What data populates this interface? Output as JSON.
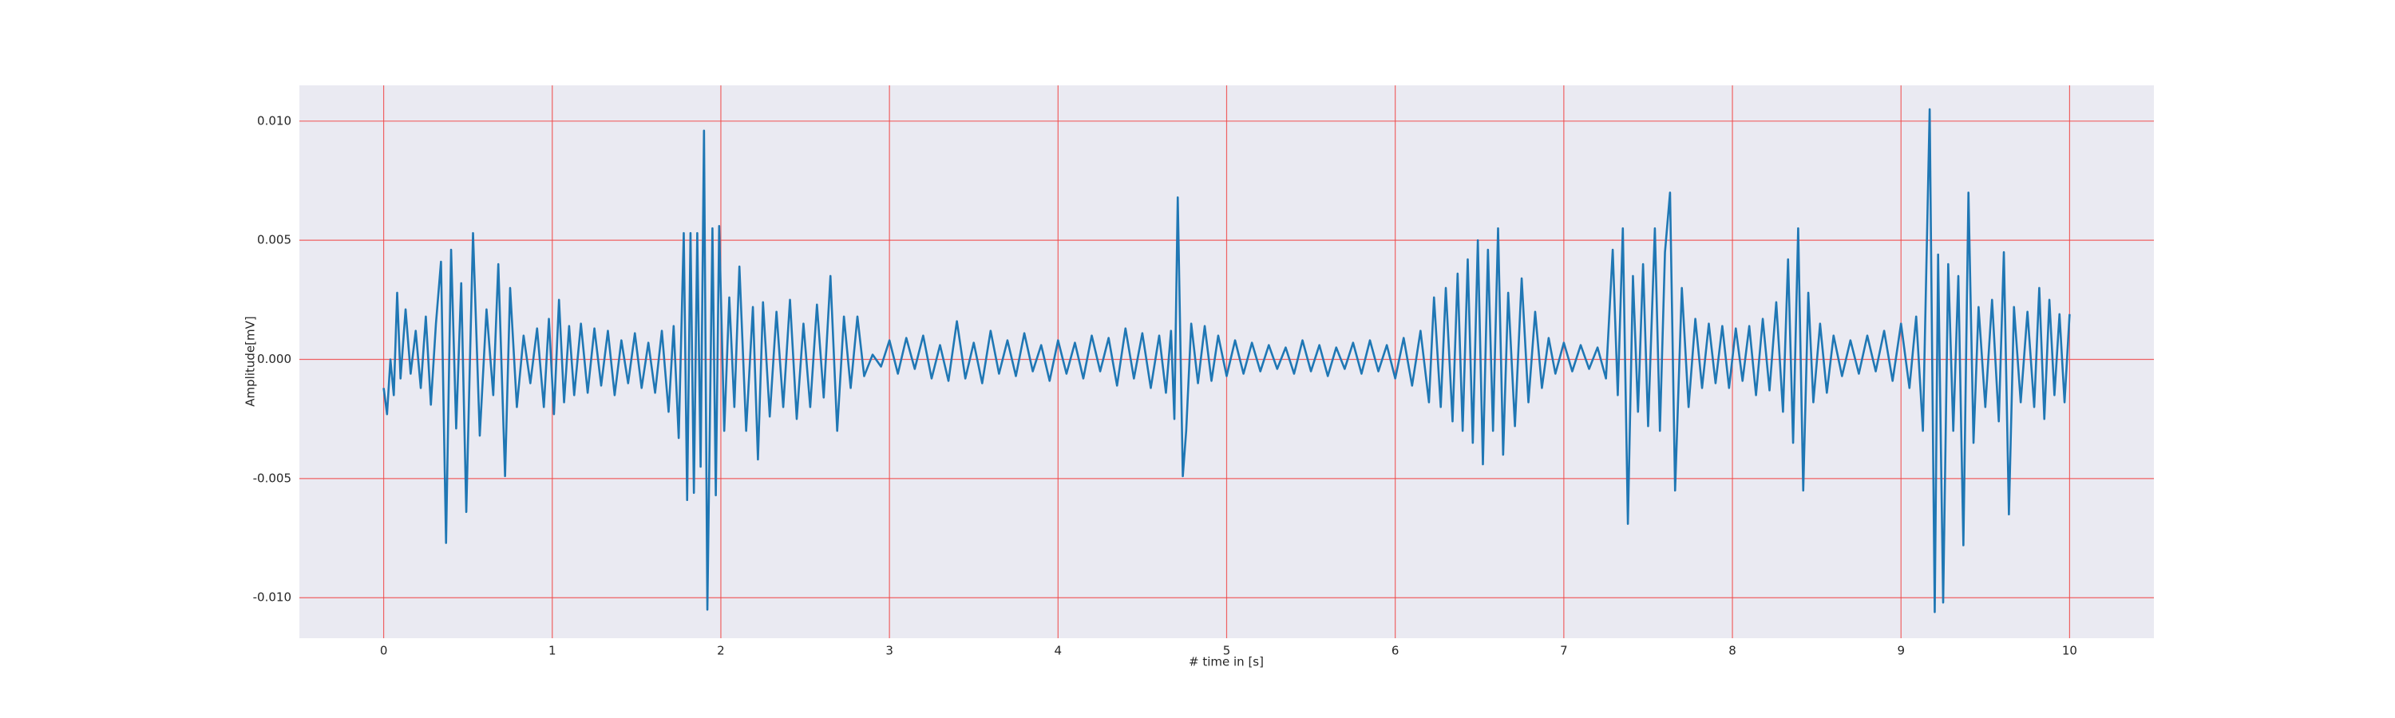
{
  "chart_data": {
    "type": "line",
    "xlabel": "# time in [s]",
    "ylabel": "Amplitude[mV]",
    "color": "#1f77b4",
    "background": "#eaeaf2",
    "grid": true,
    "xlim": [
      -0.5,
      10.5
    ],
    "ylim": [
      -0.0117,
      0.0115
    ],
    "xticks": [
      0,
      1,
      2,
      3,
      4,
      5,
      6,
      7,
      8,
      9,
      10
    ],
    "yticks": [
      {
        "value": -0.01,
        "label": "-0.010"
      },
      {
        "value": -0.005,
        "label": "-0.005"
      },
      {
        "value": 0,
        "label": "0.000"
      },
      {
        "value": 0.005,
        "label": "0.005"
      },
      {
        "value": 0.01,
        "label": "0.010"
      }
    ],
    "x": [
      0.0,
      0.02,
      0.04,
      0.06,
      0.08,
      0.1,
      0.13,
      0.16,
      0.19,
      0.22,
      0.25,
      0.28,
      0.31,
      0.34,
      0.37,
      0.4,
      0.43,
      0.46,
      0.49,
      0.53,
      0.57,
      0.61,
      0.65,
      0.68,
      0.72,
      0.75,
      0.79,
      0.83,
      0.87,
      0.91,
      0.95,
      0.98,
      1.01,
      1.04,
      1.07,
      1.1,
      1.13,
      1.17,
      1.21,
      1.25,
      1.29,
      1.33,
      1.37,
      1.41,
      1.45,
      1.49,
      1.53,
      1.57,
      1.61,
      1.65,
      1.69,
      1.72,
      1.75,
      1.78,
      1.8,
      1.82,
      1.84,
      1.86,
      1.88,
      1.9,
      1.92,
      1.95,
      1.97,
      1.99,
      2.02,
      2.05,
      2.08,
      2.11,
      2.15,
      2.19,
      2.22,
      2.25,
      2.29,
      2.33,
      2.37,
      2.41,
      2.45,
      2.49,
      2.53,
      2.57,
      2.61,
      2.65,
      2.69,
      2.73,
      2.77,
      2.81,
      2.85,
      2.9,
      2.95,
      3.0,
      3.05,
      3.1,
      3.15,
      3.2,
      3.25,
      3.3,
      3.35,
      3.4,
      3.45,
      3.5,
      3.55,
      3.6,
      3.65,
      3.7,
      3.75,
      3.8,
      3.85,
      3.9,
      3.95,
      4.0,
      4.05,
      4.1,
      4.15,
      4.2,
      4.25,
      4.3,
      4.35,
      4.4,
      4.45,
      4.5,
      4.55,
      4.6,
      4.64,
      4.67,
      4.69,
      4.71,
      4.74,
      4.76,
      4.79,
      4.83,
      4.87,
      4.91,
      4.95,
      5.0,
      5.05,
      5.1,
      5.15,
      5.2,
      5.25,
      5.3,
      5.35,
      5.4,
      5.45,
      5.5,
      5.55,
      5.6,
      5.65,
      5.7,
      5.75,
      5.8,
      5.85,
      5.9,
      5.95,
      6.0,
      6.05,
      6.1,
      6.15,
      6.2,
      6.23,
      6.27,
      6.3,
      6.34,
      6.37,
      6.4,
      6.43,
      6.46,
      6.49,
      6.52,
      6.55,
      6.58,
      6.61,
      6.64,
      6.67,
      6.71,
      6.75,
      6.79,
      6.83,
      6.87,
      6.91,
      6.95,
      7.0,
      7.05,
      7.1,
      7.15,
      7.2,
      7.25,
      7.29,
      7.32,
      7.35,
      7.38,
      7.41,
      7.44,
      7.47,
      7.5,
      7.54,
      7.57,
      7.6,
      7.63,
      7.66,
      7.7,
      7.74,
      7.78,
      7.82,
      7.86,
      7.9,
      7.94,
      7.98,
      8.02,
      8.06,
      8.1,
      8.14,
      8.18,
      8.22,
      8.26,
      8.3,
      8.33,
      8.36,
      8.39,
      8.42,
      8.45,
      8.48,
      8.52,
      8.56,
      8.6,
      8.65,
      8.7,
      8.75,
      8.8,
      8.85,
      8.9,
      8.95,
      9.0,
      9.05,
      9.09,
      9.13,
      9.17,
      9.2,
      9.22,
      9.25,
      9.28,
      9.31,
      9.34,
      9.37,
      9.4,
      9.43,
      9.46,
      9.5,
      9.54,
      9.58,
      9.61,
      9.64,
      9.67,
      9.71,
      9.75,
      9.79,
      9.82,
      9.85,
      9.88,
      9.91,
      9.94,
      9.97,
      10.0
    ],
    "values": [
      -0.0012,
      -0.0023,
      0.0,
      -0.0015,
      0.0028,
      -0.0008,
      0.0021,
      -0.0006,
      0.0012,
      -0.0012,
      0.0018,
      -0.0019,
      0.0015,
      0.0041,
      -0.0077,
      0.0046,
      -0.0029,
      0.0032,
      -0.0064,
      0.0053,
      -0.0032,
      0.0021,
      -0.0015,
      0.004,
      -0.0049,
      0.003,
      -0.002,
      0.001,
      -0.001,
      0.0013,
      -0.002,
      0.0017,
      -0.0023,
      0.0025,
      -0.0018,
      0.0014,
      -0.0015,
      0.0015,
      -0.0014,
      0.0013,
      -0.0011,
      0.0012,
      -0.0015,
      0.0008,
      -0.001,
      0.0011,
      -0.0012,
      0.0007,
      -0.0014,
      0.0012,
      -0.0022,
      0.0014,
      -0.0033,
      0.0053,
      -0.0059,
      0.0053,
      -0.0056,
      0.0053,
      -0.0045,
      0.0096,
      -0.0105,
      0.0055,
      -0.0057,
      0.0056,
      -0.003,
      0.0026,
      -0.002,
      0.0039,
      -0.003,
      0.0022,
      -0.0042,
      0.0024,
      -0.0024,
      0.002,
      -0.002,
      0.0025,
      -0.0025,
      0.0015,
      -0.002,
      0.0023,
      -0.0016,
      0.0035,
      -0.003,
      0.0018,
      -0.0012,
      0.0018,
      -0.0007,
      0.0002,
      -0.0003,
      0.0008,
      -0.0006,
      0.0009,
      -0.0004,
      0.001,
      -0.0008,
      0.0006,
      -0.0009,
      0.0016,
      -0.0008,
      0.0007,
      -0.001,
      0.0012,
      -0.0006,
      0.0008,
      -0.0007,
      0.0011,
      -0.0005,
      0.0006,
      -0.0009,
      0.0008,
      -0.0006,
      0.0007,
      -0.0008,
      0.001,
      -0.0005,
      0.0009,
      -0.0011,
      0.0013,
      -0.0008,
      0.0011,
      -0.0012,
      0.001,
      -0.0014,
      0.0012,
      -0.0025,
      0.0068,
      -0.0049,
      -0.003,
      0.0015,
      -0.001,
      0.0014,
      -0.0009,
      0.001,
      -0.0007,
      0.0008,
      -0.0006,
      0.0007,
      -0.0005,
      0.0006,
      -0.0004,
      0.0005,
      -0.0006,
      0.0008,
      -0.0005,
      0.0006,
      -0.0007,
      0.0005,
      -0.0004,
      0.0007,
      -0.0006,
      0.0008,
      -0.0005,
      0.0006,
      -0.0008,
      0.0009,
      -0.0011,
      0.0012,
      -0.0018,
      0.0026,
      -0.002,
      0.003,
      -0.0026,
      0.0036,
      -0.003,
      0.0042,
      -0.0035,
      0.005,
      -0.0044,
      0.0046,
      -0.003,
      0.0055,
      -0.004,
      0.0028,
      -0.0028,
      0.0034,
      -0.0018,
      0.002,
      -0.0012,
      0.0009,
      -0.0006,
      0.0007,
      -0.0005,
      0.0006,
      -0.0004,
      0.0005,
      -0.0008,
      0.0046,
      -0.0015,
      0.0055,
      -0.0069,
      0.0035,
      -0.0022,
      0.004,
      -0.0028,
      0.0055,
      -0.003,
      0.0045,
      0.007,
      -0.0055,
      0.003,
      -0.002,
      0.0017,
      -0.0012,
      0.0015,
      -0.001,
      0.0014,
      -0.0012,
      0.0013,
      -0.0009,
      0.0014,
      -0.0015,
      0.0017,
      -0.0013,
      0.0024,
      -0.0022,
      0.0042,
      -0.0035,
      0.0055,
      -0.0055,
      0.0028,
      -0.0018,
      0.0015,
      -0.0014,
      0.001,
      -0.0007,
      0.0008,
      -0.0006,
      0.001,
      -0.0005,
      0.0012,
      -0.0009,
      0.0015,
      -0.0012,
      0.0018,
      -0.003,
      0.0105,
      -0.0106,
      0.0044,
      -0.0102,
      0.004,
      -0.003,
      0.0035,
      -0.0078,
      0.007,
      -0.0035,
      0.0022,
      -0.002,
      0.0025,
      -0.0026,
      0.0045,
      -0.0065,
      0.0022,
      -0.0018,
      0.002,
      -0.002,
      0.003,
      -0.0025,
      0.0025,
      -0.0015,
      0.0019,
      -0.0018,
      0.0019
    ]
  }
}
